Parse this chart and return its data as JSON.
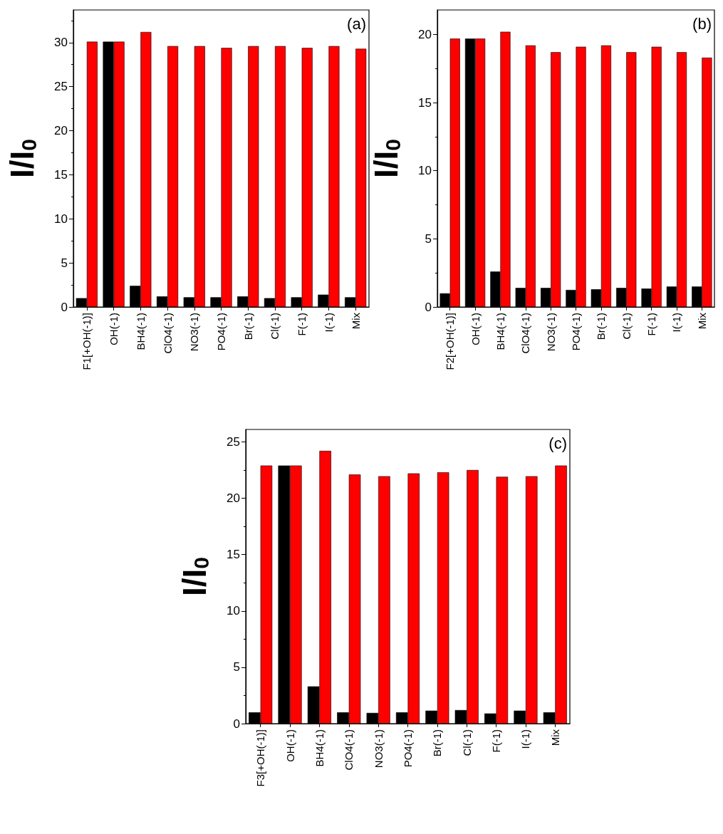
{
  "chart_data": [
    {
      "type": "bar",
      "categories": [
        "F1[+OH(-1)]",
        "OH(-1)",
        "BH4(-1)",
        "ClO4(-1)",
        "NO3(-1)",
        "PO4(-1)",
        "Br(-1)",
        "Cl(-1)",
        "F(-1)",
        "I(-1)",
        "Mix"
      ],
      "ylabel": "I/I$_{0}$",
      "annotations": [
        "(a)"
      ],
      "ylim": [
        0,
        33.7
      ],
      "yticks": [
        0,
        5,
        10,
        15,
        20,
        25,
        30
      ],
      "series": [
        {
          "color": "#000000",
          "values": [
            1.0,
            30.1,
            2.4,
            1.2,
            1.1,
            1.1,
            1.2,
            1.0,
            1.1,
            1.4,
            1.1
          ]
        },
        {
          "color": "#ff0000",
          "values": [
            30.1,
            30.1,
            31.2,
            29.6,
            29.6,
            29.4,
            29.6,
            29.6,
            29.4,
            29.6,
            29.3
          ]
        }
      ]
    },
    {
      "type": "bar",
      "categories": [
        "F2[+OH(-1)]",
        "OH(-1)",
        "BH4(-1)",
        "ClO4(-1)",
        "NO3(-1)",
        "PO4(-1)",
        "Br(-1)",
        "Cl(-1)",
        "F(-1)",
        "I(-1)",
        "Mix"
      ],
      "ylabel": "I/I$_{0}$",
      "annotations": [
        "(b)"
      ],
      "ylim": [
        0,
        21.8
      ],
      "yticks": [
        0,
        5,
        10,
        15,
        20
      ],
      "series": [
        {
          "color": "#000000",
          "values": [
            1.0,
            19.7,
            2.6,
            1.4,
            1.4,
            1.25,
            1.3,
            1.4,
            1.35,
            1.5,
            1.5
          ]
        },
        {
          "color": "#ff0000",
          "values": [
            19.7,
            19.7,
            20.2,
            19.2,
            18.7,
            19.1,
            19.2,
            18.7,
            19.1,
            18.7,
            18.3
          ]
        }
      ]
    },
    {
      "type": "bar",
      "categories": [
        "F3[+OH(-1)]",
        "OH(-1)",
        "BH4(-1)",
        "ClO4(-1)",
        "NO3(-1)",
        "PO4(-1)",
        "Br(-1)",
        "Cl(-1)",
        "F(-1)",
        "I(-1)",
        "Mix"
      ],
      "ylabel": "I/I$_{0}$",
      "annotations": [
        "(c)"
      ],
      "ylim": [
        0,
        26.1
      ],
      "yticks": [
        0,
        5,
        10,
        15,
        20,
        25
      ],
      "series": [
        {
          "color": "#000000",
          "values": [
            1.0,
            22.9,
            3.3,
            1.0,
            0.95,
            1.0,
            1.15,
            1.2,
            0.9,
            1.15,
            1.0
          ]
        },
        {
          "color": "#ff0000",
          "values": [
            22.9,
            22.9,
            24.2,
            22.1,
            21.95,
            22.2,
            22.3,
            22.5,
            21.9,
            21.95,
            22.9
          ]
        }
      ]
    }
  ]
}
